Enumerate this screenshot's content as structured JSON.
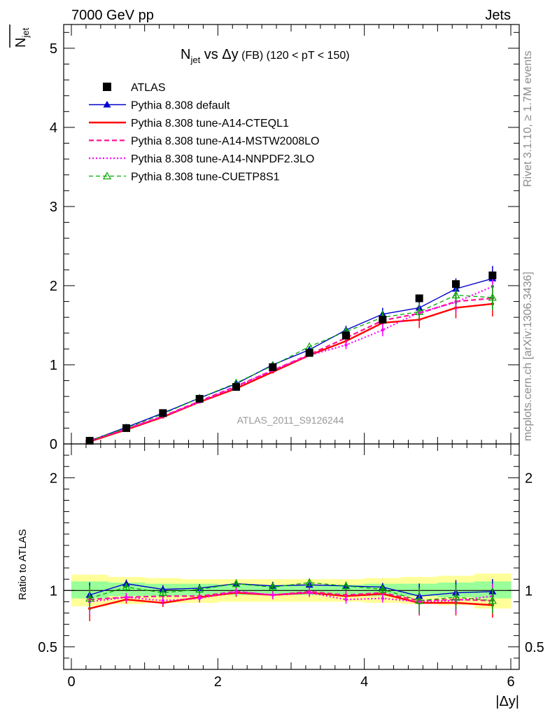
{
  "header": {
    "left": "7000 GeV pp",
    "right": "Jets"
  },
  "side_labels": {
    "rivet": "Rivet 3.1.10, ≥ 1.7M events",
    "mcplots": "mcplots.cern.ch [arXiv:1306.3436]"
  },
  "colors": {
    "atlas": "#000000",
    "pythia_default": "#0000cc",
    "cteql1": "#ff0000",
    "mstw": "#ff1493",
    "nnpdf": "#ff00ff",
    "cuetp8s1": "#00aa00",
    "band_inner": "#99ff99",
    "band_outer": "#ffff99"
  },
  "chart_data": [
    {
      "type": "line",
      "title_main": "N",
      "title_sub": "jet",
      "title_rest": " vs Δy",
      "title_small": " (FB) (120 < pT < 150)",
      "ylabel_main": "N",
      "ylabel_sub": "jet",
      "watermark": "ATLAS_2011_S9126244",
      "xlim": [
        0,
        6
      ],
      "ylim": [
        0,
        5.3
      ],
      "yticks": [
        "0",
        "1",
        "2",
        "3",
        "4",
        "5"
      ],
      "x": [
        0.25,
        0.75,
        1.25,
        1.75,
        2.25,
        2.75,
        3.25,
        3.75,
        4.25,
        4.75,
        5.25,
        5.75
      ],
      "series": [
        {
          "name": "ATLAS",
          "key": "atlas",
          "values": [
            0.04,
            0.2,
            0.39,
            0.57,
            0.72,
            0.97,
            1.15,
            1.37,
            1.57,
            1.84,
            2.02,
            2.13
          ]
        },
        {
          "name": "Pythia 8.308 default",
          "key": "pythia_default",
          "values": [
            0.04,
            0.21,
            0.39,
            0.58,
            0.76,
            1.0,
            1.19,
            1.44,
            1.64,
            1.72,
            1.96,
            2.09
          ]
        },
        {
          "name": "Pythia 8.308 tune-A14-CTEQL1",
          "key": "cteql1",
          "values": [
            0.03,
            0.18,
            0.34,
            0.53,
            0.7,
            0.91,
            1.12,
            1.3,
            1.53,
            1.57,
            1.72,
            1.77
          ]
        },
        {
          "name": "Pythia 8.308 tune-A14-MSTW2008LO",
          "key": "mstw",
          "values": [
            0.04,
            0.19,
            0.35,
            0.54,
            0.73,
            0.93,
            1.13,
            1.34,
            1.56,
            1.65,
            1.8,
            1.84
          ]
        },
        {
          "name": "Pythia 8.308 tune-A14-NNPDF2.3LO",
          "key": "nnpdf",
          "values": [
            0.04,
            0.19,
            0.35,
            0.53,
            0.72,
            0.93,
            1.12,
            1.25,
            1.44,
            1.66,
            1.79,
            1.99
          ]
        },
        {
          "name": "Pythia 8.308 tune-CUETP8S1",
          "key": "cuetp8s1",
          "values": [
            0.04,
            0.2,
            0.38,
            0.58,
            0.77,
            0.99,
            1.23,
            1.42,
            1.6,
            1.67,
            1.88,
            1.85
          ]
        }
      ]
    },
    {
      "type": "line",
      "ylabel": "Ratio to ATLAS",
      "xlabel": "|Δy|",
      "xlim": [
        0,
        6
      ],
      "ylim": [
        0.3,
        2.3
      ],
      "xticks": [
        "0",
        "2",
        "4",
        "6"
      ],
      "yticks": [
        "0.5",
        "1",
        "2"
      ],
      "x": [
        0.25,
        0.75,
        1.25,
        1.75,
        2.25,
        2.75,
        3.25,
        3.75,
        4.25,
        4.75,
        5.25,
        5.75
      ],
      "band_edges": [
        0,
        0.5,
        1.0,
        1.5,
        2.0,
        2.5,
        3.0,
        3.5,
        4.0,
        4.5,
        5.0,
        5.5,
        6.0
      ],
      "band_inner": [
        [
          0.93,
          1.08
        ],
        [
          0.95,
          1.07
        ],
        [
          0.95,
          1.06
        ],
        [
          0.95,
          1.06
        ],
        [
          0.96,
          1.05
        ],
        [
          0.96,
          1.05
        ],
        [
          0.96,
          1.05
        ],
        [
          0.96,
          1.05
        ],
        [
          0.95,
          1.06
        ],
        [
          0.95,
          1.06
        ],
        [
          0.94,
          1.07
        ],
        [
          0.93,
          1.08
        ]
      ],
      "band_outer": [
        [
          0.86,
          1.14
        ],
        [
          0.88,
          1.12
        ],
        [
          0.89,
          1.11
        ],
        [
          0.89,
          1.1
        ],
        [
          0.9,
          1.1
        ],
        [
          0.9,
          1.1
        ],
        [
          0.9,
          1.1
        ],
        [
          0.9,
          1.1
        ],
        [
          0.89,
          1.11
        ],
        [
          0.88,
          1.12
        ],
        [
          0.87,
          1.13
        ],
        [
          0.84,
          1.15
        ]
      ],
      "series": [
        {
          "name": "Pythia 8.308 default",
          "key": "pythia_default",
          "values": [
            0.96,
            1.06,
            1.01,
            1.02,
            1.06,
            1.04,
            1.05,
            1.04,
            1.03,
            0.95,
            0.98,
            0.99
          ]
        },
        {
          "name": "Pythia 8.308 tune-A14-CTEQL1",
          "key": "cteql1",
          "values": [
            0.84,
            0.92,
            0.89,
            0.94,
            0.98,
            0.96,
            0.98,
            0.95,
            0.97,
            0.89,
            0.89,
            0.87
          ]
        },
        {
          "name": "Pythia 8.308 tune-A14-MSTW2008LO",
          "key": "mstw",
          "values": [
            0.92,
            0.94,
            0.95,
            0.95,
            0.99,
            0.96,
            0.99,
            0.96,
            0.98,
            0.91,
            0.92,
            0.91
          ]
        },
        {
          "name": "Pythia 8.308 tune-A14-NNPDF2.3LO",
          "key": "nnpdf",
          "values": [
            0.9,
            0.94,
            0.91,
            0.93,
            0.99,
            0.96,
            0.98,
            0.92,
            0.93,
            0.9,
            0.91,
            0.95
          ]
        },
        {
          "name": "Pythia 8.308 tune-CUETP8S1",
          "key": "cuetp8s1",
          "values": [
            0.93,
            1.03,
            0.98,
            1.01,
            1.06,
            1.03,
            1.07,
            1.04,
            1.01,
            0.91,
            0.94,
            0.91
          ]
        }
      ]
    }
  ]
}
